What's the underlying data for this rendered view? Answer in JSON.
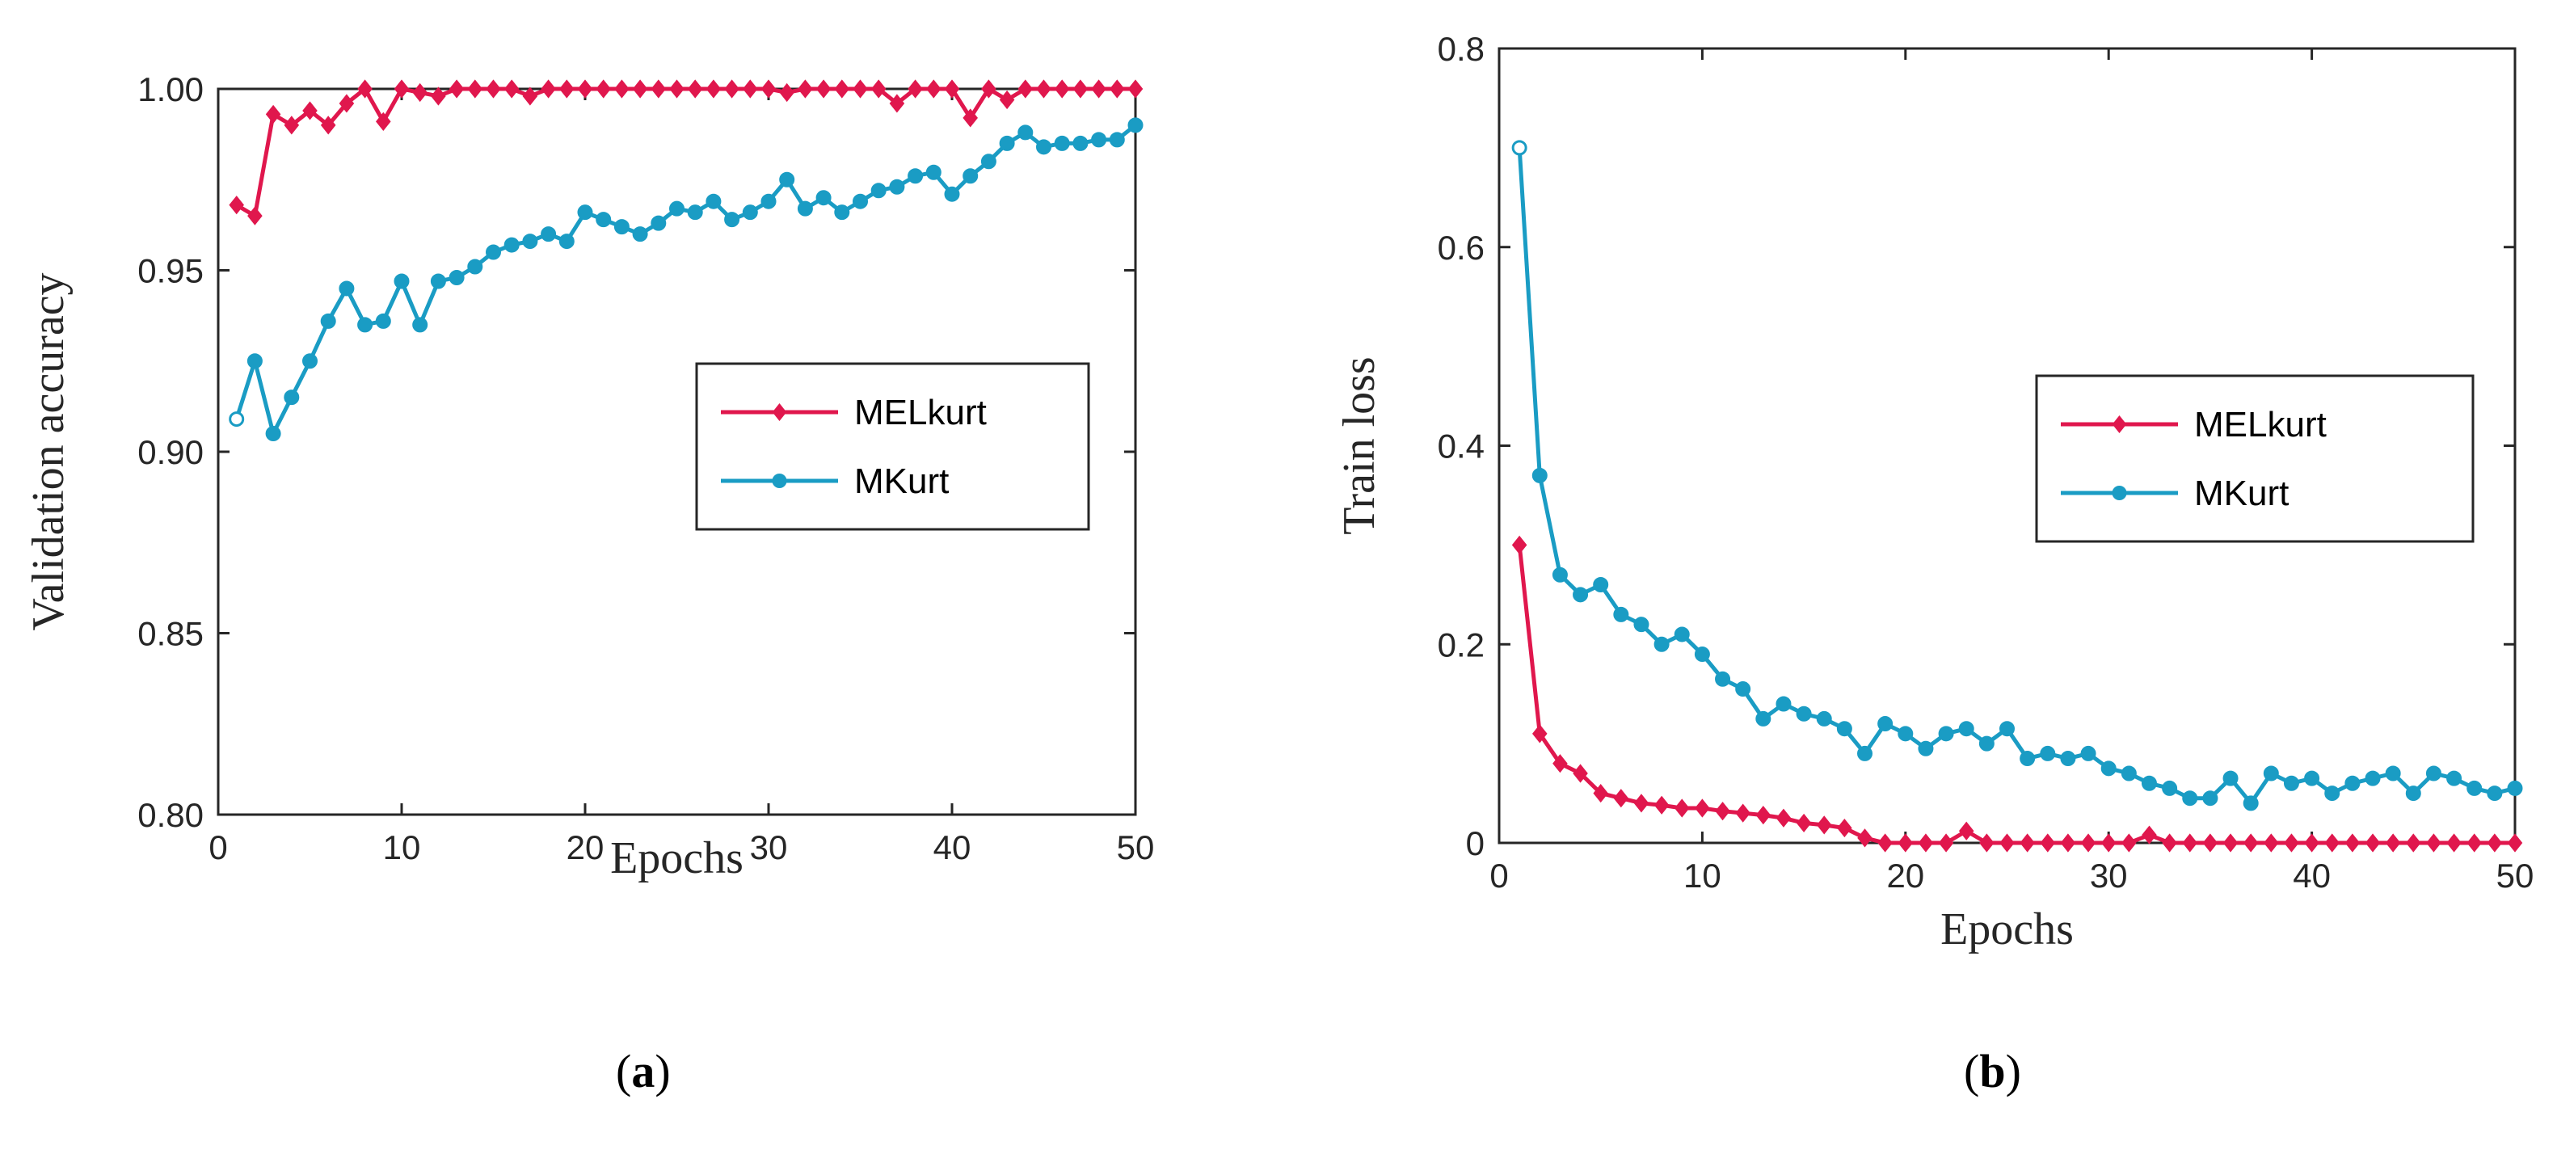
{
  "colors": {
    "series_red": "#e0174d",
    "series_teal": "#1a9cc4"
  },
  "chart_data": [
    {
      "type": "line",
      "caption": "a",
      "xlabel": "Epochs",
      "ylabel": "Validation accuracy",
      "xlim": [
        0,
        50
      ],
      "ylim": [
        0.8,
        1.0
      ],
      "xticks": [
        0,
        10,
        20,
        30,
        40,
        50
      ],
      "yticks": [
        0.8,
        0.85,
        0.9,
        0.95,
        1.0
      ],
      "xtick_labels": [
        "0",
        "10",
        "20",
        "30",
        "40",
        "50"
      ],
      "ytick_labels": [
        "0.80",
        "0.85",
        "0.90",
        "0.95",
        "1.00"
      ],
      "grid": false,
      "legend_position": "center-right",
      "x": [
        1,
        2,
        3,
        4,
        5,
        6,
        7,
        8,
        9,
        10,
        11,
        12,
        13,
        14,
        15,
        16,
        17,
        18,
        19,
        20,
        21,
        22,
        23,
        24,
        25,
        26,
        27,
        28,
        29,
        30,
        31,
        32,
        33,
        34,
        35,
        36,
        37,
        38,
        39,
        40,
        41,
        42,
        43,
        44,
        45,
        46,
        47,
        48,
        49,
        50
      ],
      "series": [
        {
          "name": "MELkurt",
          "color": "#e0174d",
          "marker": "diamond",
          "values": [
            0.968,
            0.965,
            0.993,
            0.99,
            0.994,
            0.99,
            0.996,
            1.0,
            0.991,
            1.0,
            0.999,
            0.998,
            1.0,
            1.0,
            1.0,
            1.0,
            0.998,
            1.0,
            1.0,
            1.0,
            1.0,
            1.0,
            1.0,
            1.0,
            1.0,
            1.0,
            1.0,
            1.0,
            1.0,
            1.0,
            0.999,
            1.0,
            1.0,
            1.0,
            1.0,
            1.0,
            0.996,
            1.0,
            1.0,
            1.0,
            0.992,
            1.0,
            0.997,
            1.0,
            1.0,
            1.0,
            1.0,
            1.0,
            1.0,
            1.0
          ]
        },
        {
          "name": "MKurt",
          "color": "#1a9cc4",
          "marker": "circle",
          "values": [
            0.909,
            0.925,
            0.905,
            0.915,
            0.925,
            0.936,
            0.945,
            0.935,
            0.936,
            0.947,
            0.935,
            0.947,
            0.948,
            0.951,
            0.955,
            0.957,
            0.958,
            0.96,
            0.958,
            0.966,
            0.964,
            0.962,
            0.96,
            0.963,
            0.967,
            0.966,
            0.969,
            0.964,
            0.966,
            0.969,
            0.975,
            0.967,
            0.97,
            0.966,
            0.969,
            0.972,
            0.973,
            0.976,
            0.977,
            0.971,
            0.976,
            0.98,
            0.985,
            0.988,
            0.984,
            0.985,
            0.985,
            0.986,
            0.986,
            0.99
          ]
        }
      ]
    },
    {
      "type": "line",
      "caption": "b",
      "xlabel": "Epochs",
      "ylabel": "Train loss",
      "xlim": [
        0,
        50
      ],
      "ylim": [
        0,
        0.8
      ],
      "xticks": [
        0,
        10,
        20,
        30,
        40,
        50
      ],
      "yticks": [
        0,
        0.2,
        0.4,
        0.6,
        0.8
      ],
      "xtick_labels": [
        "0",
        "10",
        "20",
        "30",
        "40",
        "50"
      ],
      "ytick_labels": [
        "0",
        "0.2",
        "0.4",
        "0.6",
        "0.8"
      ],
      "grid": false,
      "legend_position": "center-right",
      "x": [
        1,
        2,
        3,
        4,
        5,
        6,
        7,
        8,
        9,
        10,
        11,
        12,
        13,
        14,
        15,
        16,
        17,
        18,
        19,
        20,
        21,
        22,
        23,
        24,
        25,
        26,
        27,
        28,
        29,
        30,
        31,
        32,
        33,
        34,
        35,
        36,
        37,
        38,
        39,
        40,
        41,
        42,
        43,
        44,
        45,
        46,
        47,
        48,
        49,
        50
      ],
      "series": [
        {
          "name": "MELkurt",
          "color": "#e0174d",
          "marker": "diamond",
          "values": [
            0.3,
            0.11,
            0.08,
            0.07,
            0.05,
            0.045,
            0.04,
            0.038,
            0.035,
            0.035,
            0.032,
            0.03,
            0.028,
            0.025,
            0.02,
            0.018,
            0.015,
            0.005,
            0.0,
            0.0,
            0.0,
            0.0,
            0.012,
            0.0,
            0.0,
            0.0,
            0.0,
            0.0,
            0.0,
            0.0,
            0.0,
            0.008,
            0.0,
            0.0,
            0.0,
            0.0,
            0.0,
            0.0,
            0.0,
            0.0,
            0.0,
            0.0,
            0.0,
            0.0,
            0.0,
            0.0,
            0.0,
            0.0,
            0.0,
            0.0
          ]
        },
        {
          "name": "MKurt",
          "color": "#1a9cc4",
          "marker": "circle",
          "values": [
            0.7,
            0.37,
            0.27,
            0.25,
            0.26,
            0.23,
            0.22,
            0.2,
            0.21,
            0.19,
            0.165,
            0.155,
            0.125,
            0.14,
            0.13,
            0.125,
            0.115,
            0.09,
            0.12,
            0.11,
            0.095,
            0.11,
            0.115,
            0.1,
            0.115,
            0.085,
            0.09,
            0.085,
            0.09,
            0.075,
            0.07,
            0.06,
            0.055,
            0.045,
            0.045,
            0.065,
            0.04,
            0.07,
            0.06,
            0.065,
            0.05,
            0.06,
            0.065,
            0.07,
            0.05,
            0.07,
            0.065,
            0.055,
            0.05,
            0.055
          ]
        }
      ]
    }
  ]
}
